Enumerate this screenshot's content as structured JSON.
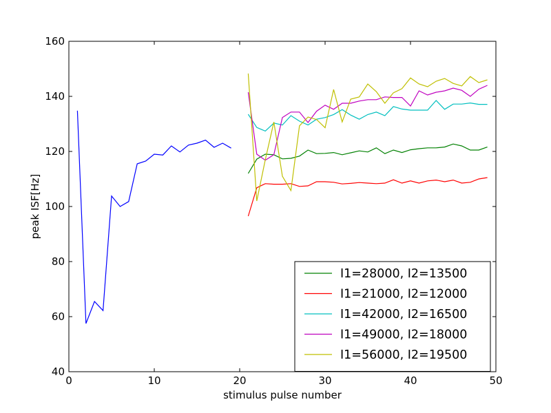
{
  "chart_data": {
    "type": "line",
    "title": "",
    "xlabel": "stimulus pulse number",
    "ylabel": "peak ISF[Hz]",
    "xlim": [
      0,
      50
    ],
    "ylim": [
      40,
      160
    ],
    "xticks": [
      0,
      10,
      20,
      30,
      40,
      50
    ],
    "yticks": [
      40,
      60,
      80,
      100,
      120,
      140,
      160
    ],
    "grid": false,
    "legend_position": "bottom-right",
    "series": [
      {
        "color": "#0000ff",
        "x": [
          1,
          2,
          3,
          4,
          5,
          6,
          7,
          8,
          9,
          10,
          11,
          12,
          13,
          14,
          15,
          16,
          17,
          18,
          19
        ],
        "values": [
          134.8,
          57.5,
          65.5,
          62.2,
          103.8,
          100.0,
          101.8,
          115.5,
          116.5,
          119.0,
          118.7,
          122.0,
          119.8,
          122.3,
          123.0,
          124.1,
          121.5,
          123.0,
          121.2
        ]
      },
      {
        "name": "I1=28000, I2=13500",
        "color": "#008000",
        "x": [
          21,
          22,
          23,
          24,
          25,
          26,
          27,
          28,
          29,
          30,
          31,
          32,
          33,
          34,
          35,
          36,
          37,
          38,
          39,
          40,
          41,
          42,
          43,
          44,
          45,
          46,
          47,
          48,
          49
        ],
        "values": [
          112.0,
          117.2,
          119.0,
          118.8,
          117.3,
          117.5,
          118.3,
          120.5,
          119.2,
          119.3,
          119.6,
          118.8,
          119.5,
          120.2,
          119.8,
          121.3,
          119.2,
          120.5,
          119.6,
          120.6,
          121.0,
          121.3,
          121.3,
          121.6,
          122.7,
          122.0,
          120.5,
          120.5,
          121.6
        ]
      },
      {
        "name": "I1=21000, I2=12000",
        "color": "#ff0000",
        "x": [
          21,
          22,
          23,
          24,
          25,
          26,
          27,
          28,
          29,
          30,
          31,
          32,
          33,
          34,
          35,
          36,
          37,
          38,
          39,
          40,
          41,
          42,
          43,
          44,
          45,
          46,
          47,
          48,
          49
        ],
        "values": [
          96.5,
          106.8,
          108.3,
          108.1,
          108.1,
          108.3,
          107.3,
          107.5,
          109.0,
          109.0,
          108.8,
          108.2,
          108.4,
          108.7,
          108.5,
          108.3,
          108.5,
          109.7,
          108.5,
          109.3,
          108.5,
          109.3,
          109.6,
          109.0,
          109.6,
          108.5,
          108.8,
          110.0,
          110.5
        ]
      },
      {
        "name": "I1=42000, I2=16500",
        "color": "#00bfbf",
        "x": [
          21,
          22,
          23,
          24,
          25,
          26,
          27,
          28,
          29,
          30,
          31,
          32,
          33,
          34,
          35,
          36,
          37,
          38,
          39,
          40,
          41,
          42,
          43,
          44,
          45,
          46,
          47,
          48,
          49
        ],
        "values": [
          133.5,
          128.7,
          127.4,
          130.3,
          129.6,
          133.0,
          131.0,
          129.6,
          131.7,
          132.3,
          133.4,
          135.2,
          133.2,
          131.7,
          133.4,
          134.3,
          133.0,
          136.3,
          135.4,
          135.0,
          135.0,
          135.0,
          138.5,
          135.3,
          137.2,
          137.2,
          137.6,
          137.1,
          137.1
        ]
      },
      {
        "name": "I1=49000, I2=18000",
        "color": "#bf00bf",
        "x": [
          21,
          22,
          23,
          24,
          25,
          26,
          27,
          28,
          29,
          30,
          31,
          32,
          33,
          34,
          35,
          36,
          37,
          38,
          39,
          40,
          41,
          42,
          43,
          44,
          45,
          46,
          47,
          48,
          49
        ],
        "values": [
          141.5,
          119.0,
          116.8,
          118.8,
          132.3,
          134.3,
          134.3,
          130.5,
          134.6,
          136.8,
          135.3,
          137.5,
          137.5,
          138.3,
          138.8,
          138.8,
          139.8,
          139.6,
          139.6,
          136.5,
          142.0,
          140.5,
          141.5,
          142.0,
          143.0,
          142.2,
          140.0,
          142.6,
          144.0
        ]
      },
      {
        "name": "I1=56000, I2=19500",
        "color": "#bfbf00",
        "x": [
          21,
          22,
          23,
          24,
          25,
          26,
          27,
          28,
          29,
          30,
          31,
          32,
          33,
          34,
          35,
          36,
          37,
          38,
          39,
          40,
          41,
          42,
          43,
          44,
          45,
          46,
          47,
          48,
          49
        ],
        "values": [
          148.3,
          102.0,
          117.0,
          130.7,
          111.0,
          105.8,
          129.3,
          132.5,
          131.6,
          128.6,
          142.5,
          130.7,
          139.0,
          139.8,
          144.5,
          141.7,
          137.5,
          141.3,
          142.8,
          146.7,
          144.5,
          143.5,
          145.5,
          146.5,
          144.7,
          143.8,
          147.2,
          145.0,
          146.0
        ]
      }
    ]
  }
}
